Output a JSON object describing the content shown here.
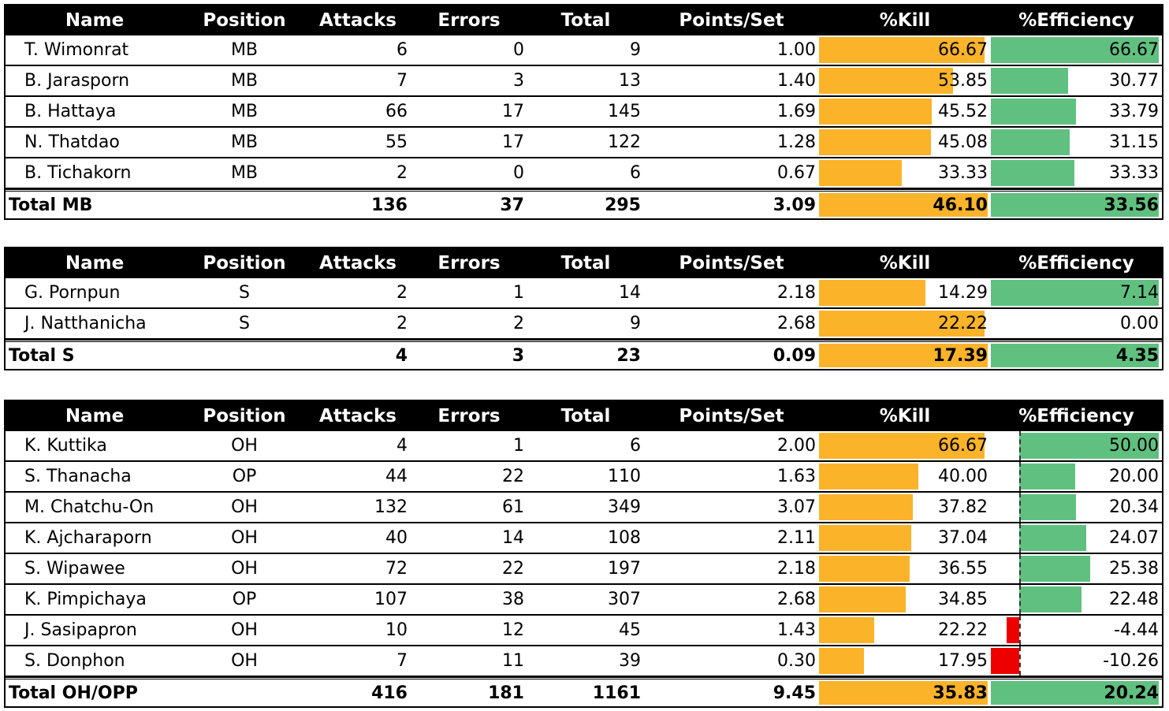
{
  "headers": {
    "name": "Name",
    "position": "Position",
    "attacks": "Attacks",
    "errors": "Errors",
    "total": "Total",
    "points_per_set": "Points/Set",
    "kill": "%Kill",
    "efficiency": "%Efficiency"
  },
  "colors": {
    "kill_bar": "#fbb32a",
    "efficiency_positive_bar": "#60c080",
    "efficiency_negative_bar": "#ee0000",
    "header_background": "#000000"
  },
  "tables": [
    {
      "rows": [
        {
          "name": "T. Wimonrat",
          "position": "MB",
          "attacks": "6",
          "errors": "0",
          "total": "9",
          "points_per_set": "1.00",
          "kill": "66.67",
          "efficiency": "66.67"
        },
        {
          "name": "B. Jarasporn",
          "position": "MB",
          "attacks": "7",
          "errors": "3",
          "total": "13",
          "points_per_set": "1.40",
          "kill": "53.85",
          "efficiency": "30.77"
        },
        {
          "name": "B. Hattaya",
          "position": "MB",
          "attacks": "66",
          "errors": "17",
          "total": "145",
          "points_per_set": "1.69",
          "kill": "45.52",
          "efficiency": "33.79"
        },
        {
          "name": "N. Thatdao",
          "position": "MB",
          "attacks": "55",
          "errors": "17",
          "total": "122",
          "points_per_set": "1.28",
          "kill": "45.08",
          "efficiency": "31.15"
        },
        {
          "name": "B. Tichakorn",
          "position": "MB",
          "attacks": "2",
          "errors": "0",
          "total": "6",
          "points_per_set": "0.67",
          "kill": "33.33",
          "efficiency": "33.33"
        }
      ],
      "total": {
        "name": "Total MB",
        "attacks": "136",
        "errors": "37",
        "total": "295",
        "points_per_set": "3.09",
        "kill": "46.10",
        "efficiency": "33.56"
      }
    },
    {
      "rows": [
        {
          "name": "G. Pornpun",
          "position": "S",
          "attacks": "2",
          "errors": "1",
          "total": "14",
          "points_per_set": "2.18",
          "kill": "14.29",
          "efficiency": "7.14"
        },
        {
          "name": "J. Natthanicha",
          "position": "S",
          "attacks": "2",
          "errors": "2",
          "total": "9",
          "points_per_set": "2.68",
          "kill": "22.22",
          "efficiency": "0.00"
        }
      ],
      "total": {
        "name": "Total S",
        "attacks": "4",
        "errors": "3",
        "total": "23",
        "points_per_set": "0.09",
        "kill": "17.39",
        "efficiency": "4.35"
      }
    },
    {
      "rows": [
        {
          "name": "K. Kuttika",
          "position": "OH",
          "attacks": "4",
          "errors": "1",
          "total": "6",
          "points_per_set": "2.00",
          "kill": "66.67",
          "efficiency": "50.00"
        },
        {
          "name": "S. Thanacha",
          "position": "OP",
          "attacks": "44",
          "errors": "22",
          "total": "110",
          "points_per_set": "1.63",
          "kill": "40.00",
          "efficiency": "20.00"
        },
        {
          "name": "M. Chatchu-On",
          "position": "OH",
          "attacks": "132",
          "errors": "61",
          "total": "349",
          "points_per_set": "3.07",
          "kill": "37.82",
          "efficiency": "20.34"
        },
        {
          "name": "K. Ajcharaporn",
          "position": "OH",
          "attacks": "40",
          "errors": "14",
          "total": "108",
          "points_per_set": "2.11",
          "kill": "37.04",
          "efficiency": "24.07"
        },
        {
          "name": "S. Wipawee",
          "position": "OH",
          "attacks": "72",
          "errors": "22",
          "total": "197",
          "points_per_set": "2.18",
          "kill": "36.55",
          "efficiency": "25.38"
        },
        {
          "name": "K. Pimpichaya",
          "position": "OP",
          "attacks": "107",
          "errors": "38",
          "total": "307",
          "points_per_set": "2.68",
          "kill": "34.85",
          "efficiency": "22.48"
        },
        {
          "name": "J. Sasipapron",
          "position": "OH",
          "attacks": "10",
          "errors": "12",
          "total": "45",
          "points_per_set": "1.43",
          "kill": "22.22",
          "efficiency": "-4.44"
        },
        {
          "name": "S. Donphon",
          "position": "OH",
          "attacks": "7",
          "errors": "11",
          "total": "39",
          "points_per_set": "0.30",
          "kill": "17.95",
          "efficiency": "-10.26"
        }
      ],
      "total": {
        "name": "Total OH/OPP",
        "attacks": "416",
        "errors": "181",
        "total": "1161",
        "points_per_set": "9.45",
        "kill": "35.83",
        "efficiency": "20.24"
      }
    }
  ]
}
